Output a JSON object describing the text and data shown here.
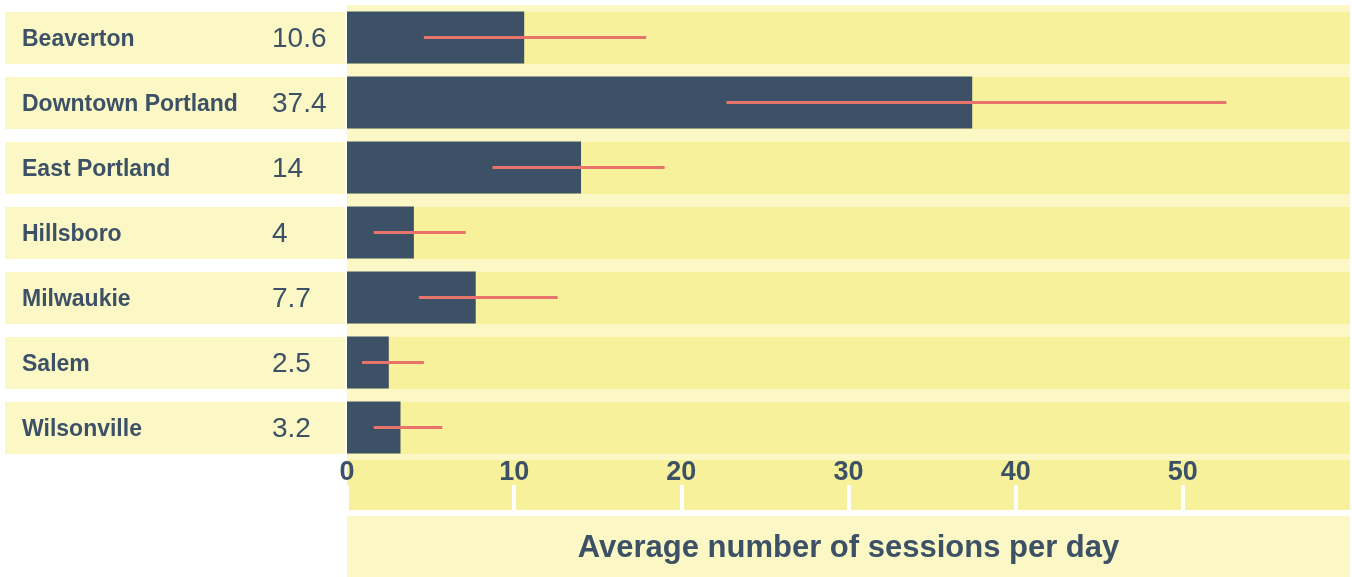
{
  "chart_data": {
    "type": "bar",
    "orientation": "horizontal",
    "xlabel": "Average number of sessions per day",
    "categories": [
      "Beaverton",
      "Downtown Portland",
      "East Portland",
      "Hillsboro",
      "Milwaukie",
      "Salem",
      "Wilsonville"
    ],
    "values": [
      10.6,
      37.4,
      14,
      4,
      7.7,
      2.5,
      3.2
    ],
    "color": "#3d5166",
    "errors": [
      [
        4.6,
        17.9
      ],
      [
        22.7,
        52.6
      ],
      [
        8.7,
        19.0
      ],
      [
        1.6,
        7.1
      ],
      [
        4.3,
        12.6
      ],
      [
        0.9,
        4.6
      ],
      [
        1.6,
        5.7
      ]
    ],
    "xlim": [
      0,
      60
    ],
    "xticks": [
      0,
      10,
      20,
      30,
      40,
      50
    ],
    "data_labels": true,
    "grid": false
  }
}
